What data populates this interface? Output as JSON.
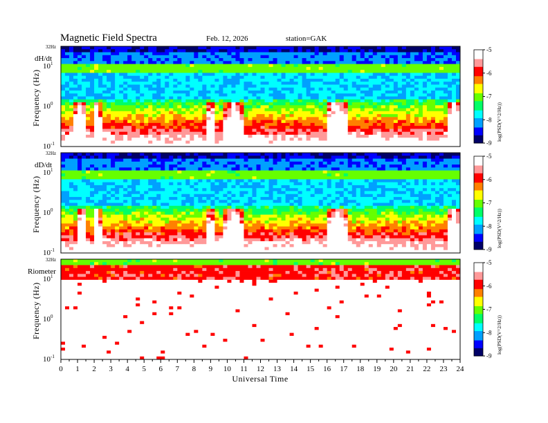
{
  "header": {
    "title": "Magnetic Field Spectra",
    "date": "Feb. 12, 2026",
    "station": "station=GAK"
  },
  "chart_data": {
    "type": "heatmap",
    "title": "Magnetic Field Spectra",
    "xlabel": "Universal Time",
    "x_ticks": [
      "0",
      "1",
      "2",
      "3",
      "4",
      "5",
      "6",
      "7",
      "8",
      "9",
      "10",
      "11",
      "12",
      "13",
      "14",
      "15",
      "16",
      "17",
      "18",
      "19",
      "20",
      "21",
      "22",
      "23",
      "24"
    ],
    "xlim": [
      0,
      24
    ],
    "y_scale": "log",
    "ylim_hz": [
      0.1,
      32
    ],
    "colorbar": {
      "label": "log(PSD(V^2/Hz))",
      "ticks": [
        "-5",
        "-6",
        "-7",
        "-8",
        "-9"
      ],
      "range": [
        -9,
        -5
      ],
      "colormap": [
        "#000066",
        "#0000ff",
        "#00a0ff",
        "#00ffff",
        "#00ff66",
        "#66ff00",
        "#ffff00",
        "#ff8000",
        "#ff0000",
        "#ff9999",
        "#ffffff"
      ]
    },
    "panels": [
      {
        "name": "dH/dt",
        "ylabel": "Frequency  (Hz)",
        "top_label": "32Hz",
        "y_tick_1": "10",
        "y_tick_1_exp": "1",
        "y_tick_2": "10",
        "y_tick_2_exp": "0",
        "y_tick_3": "10",
        "y_tick_3_exp": "-1",
        "calm_intervals_ut": [
          [
            0.8,
            1.6
          ],
          [
            1.9,
            2.4
          ],
          [
            8.8,
            9.2
          ],
          [
            9.8,
            11.0
          ],
          [
            15.9,
            17.3
          ],
          [
            23.2,
            24.0
          ]
        ]
      },
      {
        "name": "dD/dt",
        "ylabel": "Frequency  (Hz)",
        "top_label": "32Hz",
        "y_tick_1": "10",
        "y_tick_1_exp": "1",
        "y_tick_2": "10",
        "y_tick_2_exp": "0",
        "y_tick_3": "10",
        "y_tick_3_exp": "-1",
        "calm_intervals_ut": [
          [
            1.0,
            1.6
          ],
          [
            1.9,
            2.4
          ],
          [
            8.8,
            9.2
          ],
          [
            9.8,
            11.0
          ],
          [
            15.9,
            17.3
          ],
          [
            23.2,
            24.0
          ]
        ]
      },
      {
        "name": "Riometer",
        "ylabel": "Frequency  (Hz)",
        "top_label": "32Hz",
        "y_tick_1": "10",
        "y_tick_1_exp": "1",
        "y_tick_2": "10",
        "y_tick_2_exp": "0",
        "y_tick_3": "10",
        "y_tick_3_exp": "-1",
        "calm_intervals_ut": []
      }
    ]
  }
}
